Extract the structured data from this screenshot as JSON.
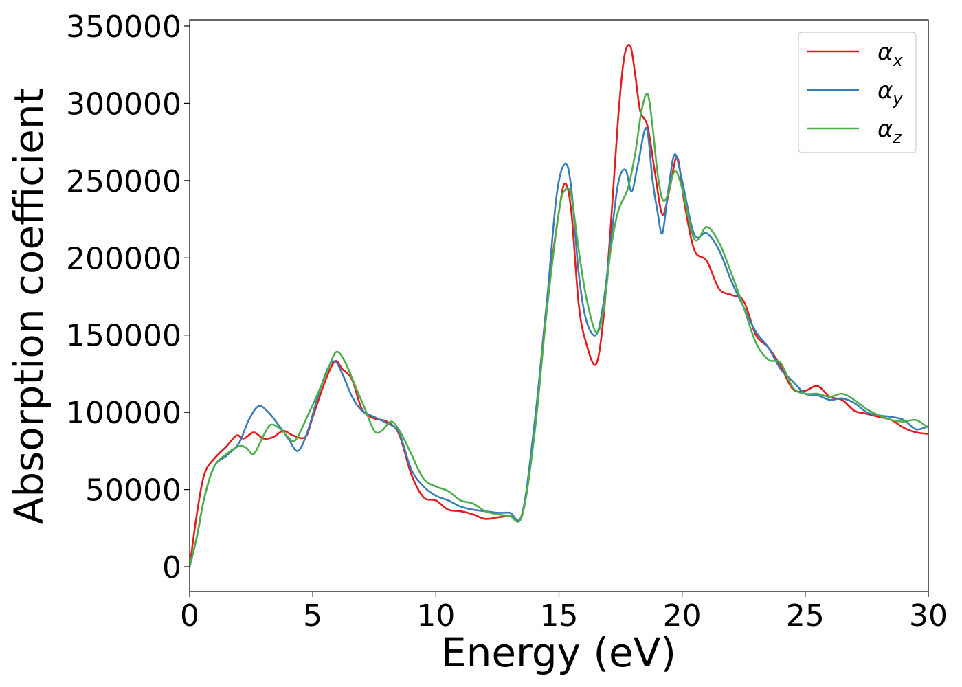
{
  "chart_data": {
    "type": "line",
    "title": "",
    "xlabel": "Energy (eV)",
    "ylabel": "Absorption coefficient",
    "xlim": [
      0,
      30
    ],
    "ylim": [
      -16000,
      354000
    ],
    "xticks": [
      0,
      5,
      10,
      15,
      20,
      25,
      30
    ],
    "xtick_labels": [
      "0",
      "5",
      "10",
      "15",
      "20",
      "25",
      "30"
    ],
    "yticks": [
      0,
      50000,
      100000,
      150000,
      200000,
      250000,
      300000,
      350000
    ],
    "ytick_labels": [
      "0",
      "50000",
      "100000",
      "150000",
      "200000",
      "250000",
      "300000",
      "350000"
    ],
    "grid": false,
    "legend_position": "top-right",
    "series": [
      {
        "name": "αx",
        "name_main": "α",
        "name_sub": "x",
        "color": "#e41a1c",
        "x": [
          0,
          0.3,
          0.6,
          1.0,
          1.5,
          1.9,
          2.2,
          2.6,
          3.0,
          3.4,
          3.8,
          4.2,
          4.7,
          5.0,
          5.5,
          5.9,
          6.2,
          6.6,
          7.0,
          7.5,
          8.0,
          8.5,
          9.0,
          9.5,
          10.0,
          10.5,
          11.0,
          11.5,
          12.0,
          12.5,
          13.0,
          13.5,
          14.0,
          14.5,
          15.0,
          15.25,
          15.5,
          15.8,
          16.1,
          16.5,
          16.8,
          17.1,
          17.4,
          17.65,
          17.9,
          18.1,
          18.3,
          18.6,
          18.9,
          19.2,
          19.5,
          19.8,
          20.1,
          20.5,
          21.0,
          21.5,
          22.0,
          22.5,
          23.0,
          23.5,
          24.0,
          24.5,
          25.0,
          25.5,
          26.0,
          26.5,
          27.0,
          27.5,
          28.0,
          28.5,
          29.0,
          29.5,
          30.0
        ],
        "y": [
          0,
          35000,
          60000,
          70000,
          78000,
          85000,
          83000,
          87000,
          83000,
          84000,
          88000,
          85000,
          84000,
          97000,
          120000,
          133000,
          128000,
          121000,
          102000,
          96000,
          94000,
          86000,
          60000,
          45000,
          43000,
          37000,
          36000,
          34000,
          31000,
          32000,
          33000,
          34000,
          90000,
          170000,
          230000,
          248000,
          230000,
          170000,
          145000,
          131000,
          160000,
          220000,
          290000,
          330000,
          337000,
          318000,
          295000,
          285000,
          255000,
          228000,
          245000,
          265000,
          235000,
          205000,
          198000,
          180000,
          176000,
          172000,
          150000,
          142000,
          130000,
          115000,
          114000,
          117000,
          110000,
          108000,
          101000,
          99000,
          97000,
          95000,
          90000,
          87000,
          86000
        ]
      },
      {
        "name": "αy",
        "name_main": "α",
        "name_sub": "y",
        "color": "#377eb8",
        "x": [
          0,
          0.3,
          0.6,
          1.0,
          1.5,
          2.0,
          2.4,
          2.8,
          3.2,
          3.6,
          4.0,
          4.4,
          4.8,
          5.2,
          5.6,
          5.9,
          6.2,
          6.6,
          7.0,
          7.5,
          8.0,
          8.5,
          9.0,
          9.5,
          10.0,
          10.5,
          11.0,
          11.5,
          12.0,
          12.5,
          13.0,
          13.5,
          14.0,
          14.5,
          14.9,
          15.25,
          15.5,
          15.8,
          16.1,
          16.5,
          16.8,
          17.1,
          17.4,
          17.7,
          17.95,
          18.2,
          18.55,
          18.8,
          19.0,
          19.2,
          19.45,
          19.7,
          20.0,
          20.5,
          21.0,
          21.5,
          22.0,
          22.5,
          23.0,
          23.5,
          24.0,
          24.5,
          25.0,
          25.5,
          26.0,
          26.5,
          27.0,
          27.5,
          28.0,
          28.5,
          29.0,
          29.5,
          30.0
        ],
        "y": [
          0,
          20000,
          45000,
          65000,
          72000,
          80000,
          95000,
          104000,
          100000,
          92000,
          83000,
          75000,
          88000,
          110000,
          128000,
          133000,
          125000,
          110000,
          101000,
          97000,
          93000,
          87000,
          63000,
          52000,
          46000,
          43000,
          39000,
          37000,
          36000,
          35000,
          35000,
          34000,
          92000,
          170000,
          240000,
          261000,
          245000,
          190000,
          160000,
          150000,
          170000,
          210000,
          248000,
          257000,
          243000,
          260000,
          284000,
          250000,
          230000,
          216000,
          245000,
          267000,
          250000,
          215000,
          216000,
          205000,
          185000,
          168000,
          152000,
          142000,
          128000,
          120000,
          112000,
          111000,
          108000,
          109000,
          106000,
          100000,
          98000,
          97000,
          95000,
          89000,
          91000
        ]
      },
      {
        "name": "αz",
        "name_main": "α",
        "name_sub": "z",
        "color": "#4daf4a",
        "x": [
          0,
          0.3,
          0.6,
          1.0,
          1.5,
          2.0,
          2.3,
          2.6,
          3.0,
          3.3,
          3.7,
          4.0,
          4.3,
          4.8,
          5.2,
          5.6,
          5.95,
          6.3,
          6.7,
          7.1,
          7.5,
          7.8,
          8.2,
          8.6,
          9.0,
          9.5,
          10.0,
          10.5,
          11.0,
          11.5,
          12.0,
          12.5,
          13.0,
          13.5,
          14.0,
          14.5,
          15.0,
          15.25,
          15.5,
          15.8,
          16.1,
          16.5,
          16.8,
          17.1,
          17.4,
          17.8,
          18.1,
          18.35,
          18.6,
          18.8,
          19.0,
          19.2,
          19.4,
          19.7,
          20.0,
          20.5,
          21.0,
          21.5,
          22.0,
          22.5,
          23.0,
          23.5,
          24.0,
          24.5,
          25.0,
          25.5,
          26.0,
          26.5,
          27.0,
          27.5,
          28.0,
          28.5,
          29.0,
          29.5,
          30.0
        ],
        "y": [
          0,
          20000,
          45000,
          65000,
          73000,
          78000,
          77000,
          73000,
          85000,
          92000,
          89000,
          84000,
          82000,
          98000,
          112000,
          127000,
          139000,
          133000,
          118000,
          103000,
          88000,
          88000,
          94000,
          86000,
          73000,
          57000,
          52000,
          49000,
          43000,
          41000,
          36000,
          34000,
          33000,
          33000,
          85000,
          165000,
          230000,
          244000,
          240000,
          205000,
          175000,
          152000,
          165000,
          205000,
          230000,
          245000,
          268000,
          295000,
          306000,
          285000,
          255000,
          238000,
          240000,
          256000,
          245000,
          212000,
          220000,
          210000,
          190000,
          168000,
          145000,
          134000,
          132000,
          116000,
          112000,
          112000,
          110000,
          112000,
          108000,
          102000,
          98000,
          95000,
          94000,
          95000,
          90000
        ]
      }
    ]
  }
}
